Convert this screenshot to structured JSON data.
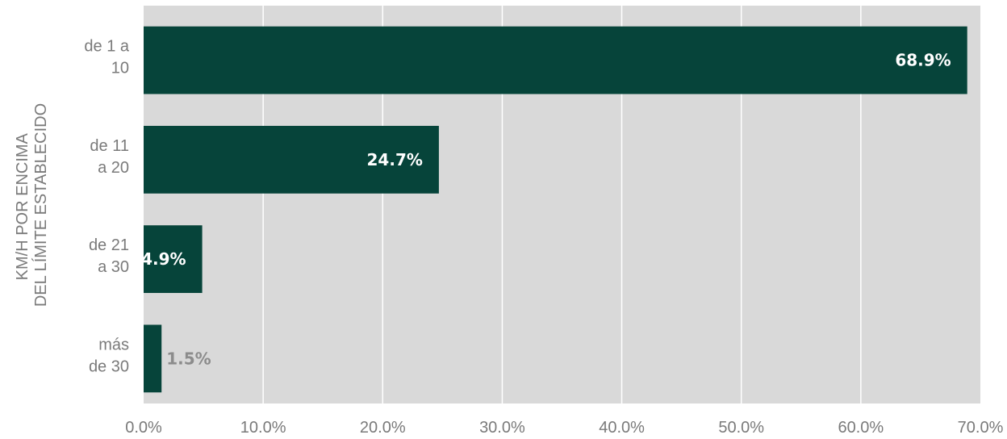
{
  "chart_data": {
    "type": "bar",
    "orientation": "horizontal",
    "title": "",
    "ylabel_lines": [
      "KM/H POR ENCIMA",
      "DEL LÍMITE ESTABLECIDO"
    ],
    "xlabel": "",
    "categories": [
      {
        "lines": [
          "de 1 a",
          "10"
        ]
      },
      {
        "lines": [
          "de 11",
          "a 20"
        ]
      },
      {
        "lines": [
          "de 21",
          "a 30"
        ]
      },
      {
        "lines": [
          "más",
          "de 30"
        ]
      }
    ],
    "values": [
      68.9,
      24.7,
      4.9,
      1.5
    ],
    "value_labels": [
      "68.9%",
      "24.7%",
      "4.9%",
      "1.5%"
    ],
    "xlim": [
      0,
      70
    ],
    "x_ticks": [
      "0.0%",
      "10.0%",
      "20.0%",
      "30.0%",
      "40.0%",
      "50.0%",
      "60.0%",
      "70.0%"
    ],
    "grid": true,
    "colors": {
      "plot_background": "#d9d9d9",
      "bar": "#06443a",
      "gridline": "#ffffff",
      "label_inside": "#ffffff",
      "label_outside": "#8c8c8c",
      "text": "#7a7a7a"
    }
  }
}
